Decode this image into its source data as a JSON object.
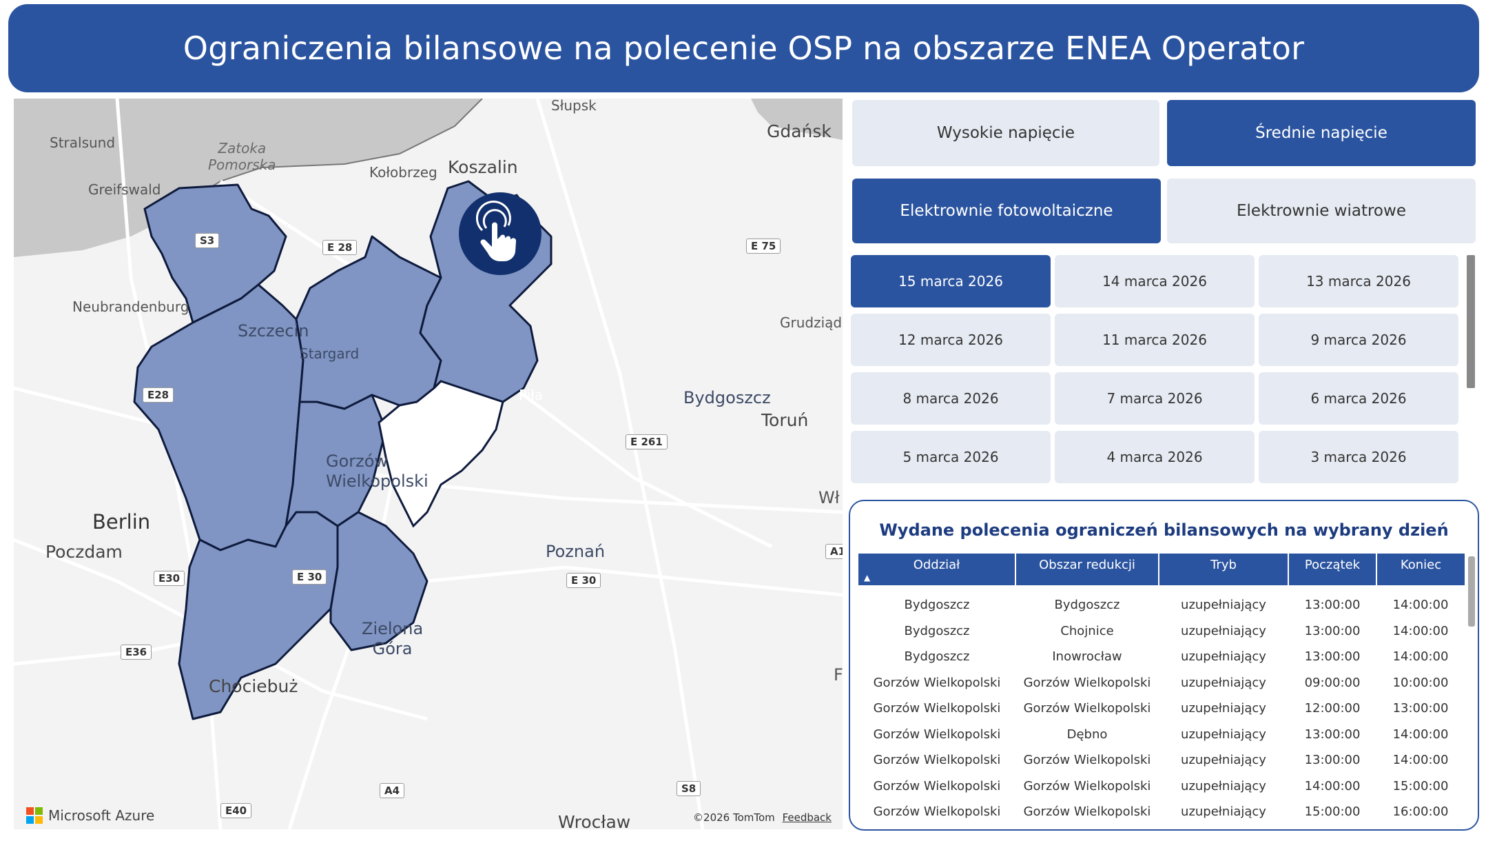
{
  "header": {
    "title": "Ograniczenia bilansowe na polecenie OSP na obszarze ENEA Operator"
  },
  "map": {
    "sea_label": "Zatoka\nPomorska",
    "labels": {
      "slupsk": "Słupsk",
      "gdansk": "Gdańsk",
      "stralsund": "Stralsund",
      "greifswald": "Greifswald",
      "kolobrzeg": "Kołobrzeg",
      "koszalin": "Koszalin",
      "neubrandenburg": "Neubrandenburg",
      "szczecin": "Szczecin",
      "stargard": "Stargard",
      "grudziadz": "Grudziądz",
      "pila": "Piła",
      "bydgoszcz": "Bydgoszcz",
      "torun": "Toruń",
      "gorzow": "Gorzów\nWielkopolski",
      "berlin": "Berlin",
      "poczdam": "Poczdam",
      "poznan": "Poznań",
      "zielona": "Zielona\nGóra",
      "chociebuz": "Chociebuż",
      "wroclaw": "Wrocław",
      "wl": "Wł",
      "f": "F"
    },
    "roads": {
      "s3": "S3",
      "e28a": "E 28",
      "e75": "E 75",
      "e28b": "E28",
      "e261": "E 261",
      "e30a": "E 30",
      "e30b": "E30",
      "e30c": "E 30",
      "e36": "E36",
      "a4": "A4",
      "s8": "S8",
      "e40": "E40",
      "a1": "A1"
    },
    "icon": "touch-hand-icon",
    "attribution": {
      "brand": "Microsoft Azure",
      "copyright": "©2026 TomTom",
      "feedback": "Feedback"
    },
    "colors": {
      "region_fill": "#8095c3",
      "region_stroke": "#0e1a3c",
      "sea": "#c8c8c8"
    }
  },
  "voltage_toggle": {
    "high": "Wysokie napięcie",
    "medium": "Średnie napięcie",
    "selected": "Średnie napięcie"
  },
  "source_toggle": {
    "pv": "Elektrownie fotowoltaiczne",
    "wind": "Elektrownie wiatrowe",
    "selected": "Elektrownie fotowoltaiczne"
  },
  "dates": [
    "15 marca 2026",
    "14 marca 2026",
    "13 marca 2026",
    "12 marca 2026",
    "11 marca 2026",
    "9 marca 2026",
    "8 marca 2026",
    "7 marca 2026",
    "6 marca 2026",
    "5 marca 2026",
    "4 marca 2026",
    "3 marca 2026"
  ],
  "selected_date": "15 marca 2026",
  "table": {
    "title": "Wydane polecenia ograniczeń bilansowych na wybrany dzień",
    "columns": [
      "Oddział",
      "Obszar redukcji",
      "Tryb",
      "Początek",
      "Koniec"
    ],
    "rows": [
      [
        "Bydgoszcz",
        "Bydgoszcz",
        "uzupełniający",
        "13:00:00",
        "14:00:00"
      ],
      [
        "Bydgoszcz",
        "Chojnice",
        "uzupełniający",
        "13:00:00",
        "14:00:00"
      ],
      [
        "Bydgoszcz",
        "Inowrocław",
        "uzupełniający",
        "13:00:00",
        "14:00:00"
      ],
      [
        "Gorzów Wielkopolski",
        "Gorzów Wielkopolski",
        "uzupełniający",
        "09:00:00",
        "10:00:00"
      ],
      [
        "Gorzów Wielkopolski",
        "Gorzów Wielkopolski",
        "uzupełniający",
        "12:00:00",
        "13:00:00"
      ],
      [
        "Gorzów Wielkopolski",
        "Dębno",
        "uzupełniający",
        "13:00:00",
        "14:00:00"
      ],
      [
        "Gorzów Wielkopolski",
        "Gorzów Wielkopolski",
        "uzupełniający",
        "13:00:00",
        "14:00:00"
      ],
      [
        "Gorzów Wielkopolski",
        "Gorzów Wielkopolski",
        "uzupełniający",
        "14:00:00",
        "15:00:00"
      ],
      [
        "Gorzów Wielkopolski",
        "Gorzów Wielkopolski",
        "uzupełniający",
        "15:00:00",
        "16:00:00"
      ]
    ]
  },
  "colors": {
    "brand": "#2b54a0",
    "button_off": "#e6eaf2"
  }
}
